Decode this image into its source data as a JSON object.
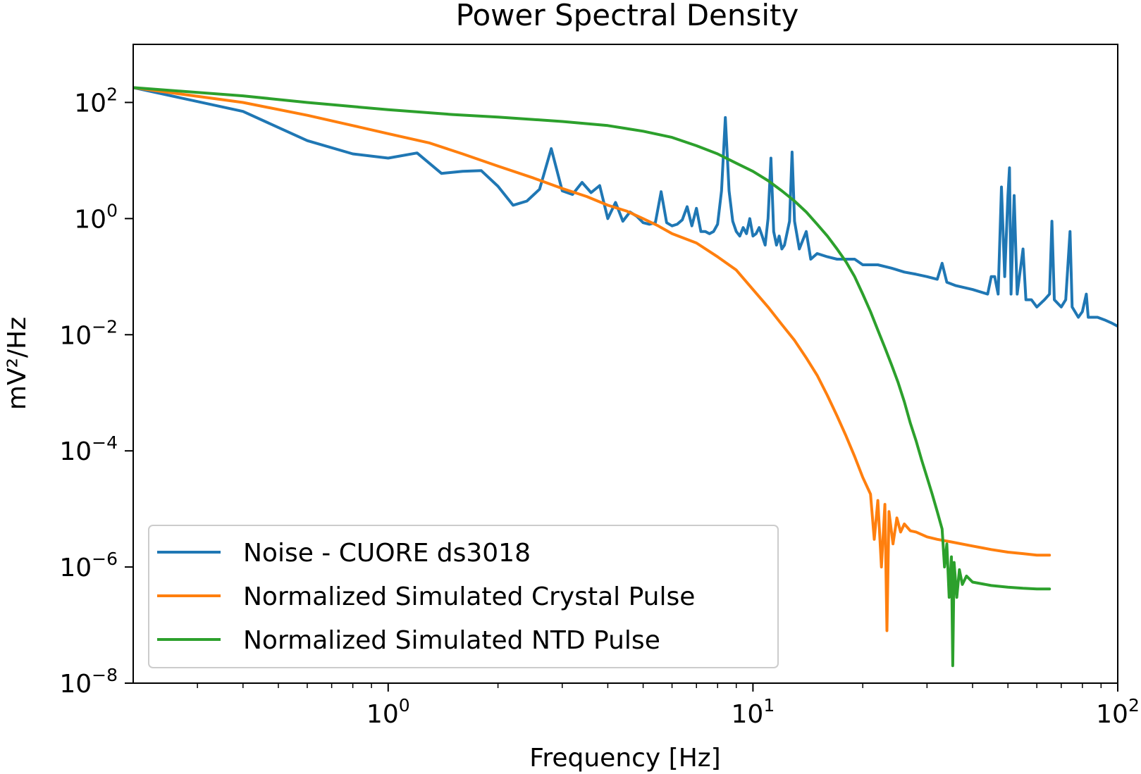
{
  "chart_data": {
    "type": "line",
    "title": "Power Spectral Density",
    "xlabel": "Frequency [Hz]",
    "ylabel": "mV²/Hz",
    "xscale": "log",
    "yscale": "log",
    "xlim": [
      0.2,
      100
    ],
    "ylim": [
      1e-08,
      1000
    ],
    "legend_position": "lower-left",
    "grid": false,
    "xticks": [
      {
        "value": 1,
        "base": "10",
        "exp": "0"
      },
      {
        "value": 10,
        "base": "10",
        "exp": "1"
      },
      {
        "value": 100,
        "base": "10",
        "exp": "2"
      }
    ],
    "yticks": [
      {
        "value": 100,
        "base": "10",
        "exp": "2"
      },
      {
        "value": 1,
        "base": "10",
        "exp": "0"
      },
      {
        "value": 0.01,
        "base": "10",
        "exp": "−2"
      },
      {
        "value": 0.0001,
        "base": "10",
        "exp": "−4"
      },
      {
        "value": 1e-06,
        "base": "10",
        "exp": "−6"
      },
      {
        "value": 1e-08,
        "base": "10",
        "exp": "−8"
      }
    ],
    "series": [
      {
        "name": "Noise - CUORE ds3018",
        "color": "#1f77b4",
        "points": [
          [
            0.2,
            180
          ],
          [
            0.4,
            70
          ],
          [
            0.6,
            22
          ],
          [
            0.8,
            13
          ],
          [
            1.0,
            11
          ],
          [
            1.2,
            13.5
          ],
          [
            1.4,
            6
          ],
          [
            1.6,
            6.5
          ],
          [
            1.8,
            6.7
          ],
          [
            2.0,
            3.6
          ],
          [
            2.2,
            1.7
          ],
          [
            2.4,
            2.0
          ],
          [
            2.6,
            3.2
          ],
          [
            2.8,
            16
          ],
          [
            3.0,
            3.0
          ],
          [
            3.2,
            2.6
          ],
          [
            3.4,
            4.2
          ],
          [
            3.6,
            2.8
          ],
          [
            3.8,
            3.7
          ],
          [
            4.0,
            1.0
          ],
          [
            4.2,
            1.9
          ],
          [
            4.4,
            0.9
          ],
          [
            4.6,
            1.3
          ],
          [
            4.8,
            1.1
          ],
          [
            5.0,
            0.85
          ],
          [
            5.2,
            0.8
          ],
          [
            5.4,
            0.85
          ],
          [
            5.6,
            2.9
          ],
          [
            5.8,
            0.85
          ],
          [
            6.0,
            0.75
          ],
          [
            6.2,
            0.8
          ],
          [
            6.4,
            0.95
          ],
          [
            6.6,
            1.6
          ],
          [
            6.8,
            0.75
          ],
          [
            7.0,
            1.5
          ],
          [
            7.2,
            0.6
          ],
          [
            7.4,
            0.6
          ],
          [
            7.6,
            0.55
          ],
          [
            7.8,
            0.6
          ],
          [
            8.0,
            0.8
          ],
          [
            8.2,
            3.0
          ],
          [
            8.4,
            55
          ],
          [
            8.6,
            3.0
          ],
          [
            8.8,
            0.9
          ],
          [
            9.0,
            0.6
          ],
          [
            9.2,
            0.5
          ],
          [
            9.4,
            0.7
          ],
          [
            9.6,
            0.55
          ],
          [
            9.8,
            1.0
          ],
          [
            10.0,
            0.5
          ],
          [
            10.2,
            0.55
          ],
          [
            10.4,
            0.7
          ],
          [
            10.6,
            0.5
          ],
          [
            10.8,
            0.35
          ],
          [
            11.0,
            1.0
          ],
          [
            11.2,
            11
          ],
          [
            11.4,
            0.6
          ],
          [
            11.6,
            0.35
          ],
          [
            11.8,
            0.5
          ],
          [
            12.0,
            0.3
          ],
          [
            12.2,
            0.35
          ],
          [
            12.6,
            0.9
          ],
          [
            12.8,
            14
          ],
          [
            13.0,
            0.9
          ],
          [
            13.4,
            0.3
          ],
          [
            14.0,
            0.6
          ],
          [
            14.4,
            0.2
          ],
          [
            15.0,
            0.25
          ],
          [
            16,
            0.22
          ],
          [
            17,
            0.2
          ],
          [
            18,
            0.2
          ],
          [
            19,
            0.2
          ],
          [
            20,
            0.16
          ],
          [
            22,
            0.16
          ],
          [
            24,
            0.14
          ],
          [
            26,
            0.12
          ],
          [
            28,
            0.11
          ],
          [
            30,
            0.1
          ],
          [
            32,
            0.09
          ],
          [
            33,
            0.17
          ],
          [
            34,
            0.08
          ],
          [
            36,
            0.07
          ],
          [
            40,
            0.06
          ],
          [
            44,
            0.05
          ],
          [
            45,
            0.1
          ],
          [
            46,
            0.1
          ],
          [
            47,
            0.05
          ],
          [
            48,
            3.5
          ],
          [
            49,
            0.1
          ],
          [
            50,
            2.5
          ],
          [
            50.5,
            7.5
          ],
          [
            51,
            0.05
          ],
          [
            52,
            2.5
          ],
          [
            53,
            0.05
          ],
          [
            55,
            0.3
          ],
          [
            56,
            0.04
          ],
          [
            58,
            0.04
          ],
          [
            60,
            0.03
          ],
          [
            63,
            0.04
          ],
          [
            65,
            0.05
          ],
          [
            66,
            0.9
          ],
          [
            67,
            0.04
          ],
          [
            70,
            0.03
          ],
          [
            72,
            0.04
          ],
          [
            74,
            0.6
          ],
          [
            75,
            0.03
          ],
          [
            78,
            0.02
          ],
          [
            80,
            0.025
          ],
          [
            82,
            0.05
          ],
          [
            83,
            0.02
          ],
          [
            88,
            0.02
          ],
          [
            92,
            0.018
          ],
          [
            96,
            0.016
          ],
          [
            100,
            0.014
          ]
        ]
      },
      {
        "name": "Normalized Simulated Crystal Pulse",
        "color": "#ff7f0e",
        "points": [
          [
            0.2,
            180
          ],
          [
            0.4,
            100
          ],
          [
            0.6,
            60
          ],
          [
            0.8,
            40
          ],
          [
            1.0,
            29
          ],
          [
            1.3,
            20
          ],
          [
            1.6,
            13
          ],
          [
            2.0,
            8
          ],
          [
            2.5,
            5
          ],
          [
            3.0,
            3.3
          ],
          [
            3.5,
            2.4
          ],
          [
            4.0,
            1.7
          ],
          [
            4.5,
            1.35
          ],
          [
            5.0,
            1.0
          ],
          [
            5.5,
            0.75
          ],
          [
            6.0,
            0.55
          ],
          [
            7.0,
            0.38
          ],
          [
            8.0,
            0.22
          ],
          [
            9.0,
            0.13
          ],
          [
            10.0,
            0.06
          ],
          [
            11.0,
            0.03
          ],
          [
            12.0,
            0.015
          ],
          [
            13.0,
            0.008
          ],
          [
            14.0,
            0.004
          ],
          [
            15.0,
            0.002
          ],
          [
            16.0,
            0.0009
          ],
          [
            17.0,
            0.0004
          ],
          [
            18.0,
            0.00018
          ],
          [
            19.0,
            8e-05
          ],
          [
            20.0,
            3.5e-05
          ],
          [
            21.0,
            1.8e-05
          ],
          [
            21.5,
            3e-06
          ],
          [
            22,
            1.4e-05
          ],
          [
            22.5,
            1e-06
          ],
          [
            23,
            1.2e-05
          ],
          [
            23.3,
            8e-08
          ],
          [
            23.6,
            9e-06
          ],
          [
            24.2,
            2.5e-06
          ],
          [
            24.8,
            7e-06
          ],
          [
            25.4,
            4e-06
          ],
          [
            26.0,
            5.5e-06
          ],
          [
            27.0,
            4.2e-06
          ],
          [
            28,
            4e-06
          ],
          [
            30,
            3.3e-06
          ],
          [
            32,
            3e-06
          ],
          [
            35,
            2.7e-06
          ],
          [
            40,
            2.3e-06
          ],
          [
            45,
            2e-06
          ],
          [
            50,
            1.8e-06
          ],
          [
            55,
            1.7e-06
          ],
          [
            60,
            1.6e-06
          ],
          [
            65,
            1.6e-06
          ]
        ]
      },
      {
        "name": "Normalized Simulated NTD Pulse",
        "color": "#2ca02c",
        "points": [
          [
            0.2,
            180
          ],
          [
            0.4,
            130
          ],
          [
            0.6,
            100
          ],
          [
            0.8,
            85
          ],
          [
            1.0,
            75
          ],
          [
            1.5,
            62
          ],
          [
            2.0,
            56
          ],
          [
            3.0,
            47
          ],
          [
            4.0,
            40
          ],
          [
            5.0,
            32
          ],
          [
            6.0,
            25
          ],
          [
            7.0,
            18
          ],
          [
            8.0,
            13
          ],
          [
            9.0,
            9
          ],
          [
            10.0,
            6.5
          ],
          [
            11.0,
            4.5
          ],
          [
            12.0,
            3.0
          ],
          [
            13.0,
            2.0
          ],
          [
            14.0,
            1.3
          ],
          [
            15.0,
            0.8
          ],
          [
            16.0,
            0.5
          ],
          [
            17.0,
            0.3
          ],
          [
            18.0,
            0.18
          ],
          [
            19.0,
            0.1
          ],
          [
            20.0,
            0.05
          ],
          [
            21.0,
            0.025
          ],
          [
            22.0,
            0.012
          ],
          [
            23.0,
            0.006
          ],
          [
            24.0,
            0.003
          ],
          [
            25.0,
            0.0015
          ],
          [
            26.0,
            0.0007
          ],
          [
            27.0,
            0.0003
          ],
          [
            28.0,
            0.00015
          ],
          [
            29.0,
            7e-05
          ],
          [
            30.0,
            3.5e-05
          ],
          [
            31.0,
            1.8e-05
          ],
          [
            32.0,
            9e-06
          ],
          [
            33.0,
            4.5e-06
          ],
          [
            33.5,
            1e-06
          ],
          [
            34.0,
            2.5e-06
          ],
          [
            34.5,
            3e-07
          ],
          [
            35.0,
            1.5e-06
          ],
          [
            35.3,
            2e-08
          ],
          [
            35.6,
            1.2e-06
          ],
          [
            36.2,
            3e-07
          ],
          [
            36.8,
            9e-07
          ],
          [
            37.5,
            5e-07
          ],
          [
            38.5,
            7e-07
          ],
          [
            40,
            5.5e-07
          ],
          [
            45,
            4.8e-07
          ],
          [
            50,
            4.5e-07
          ],
          [
            55,
            4.3e-07
          ],
          [
            60,
            4.2e-07
          ],
          [
            65,
            4.2e-07
          ]
        ]
      }
    ]
  }
}
